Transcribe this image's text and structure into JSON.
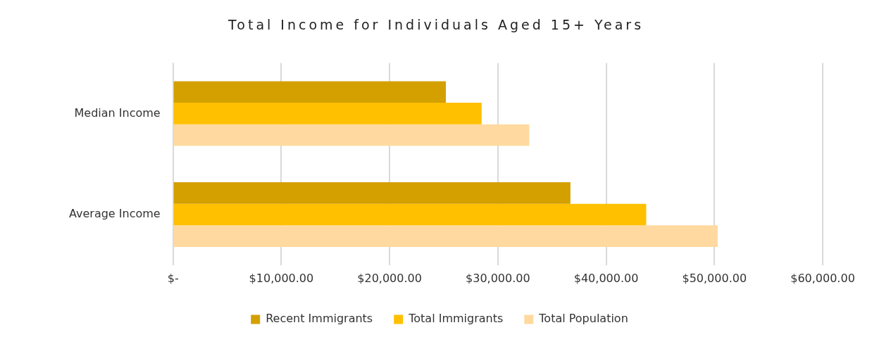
{
  "chart_data": {
    "type": "bar",
    "orientation": "horizontal",
    "title": "Total Income for Individuals Aged 15+ Years",
    "categories": [
      "Median Income",
      "Average Income"
    ],
    "series": [
      {
        "name": "Recent Immigrants",
        "color": "#d4a000",
        "values": [
          25200,
          36700
        ]
      },
      {
        "name": "Total Immigrants",
        "color": "#ffc000",
        "values": [
          28500,
          43700
        ]
      },
      {
        "name": "Total Population",
        "color": "#ffd9a0",
        "values": [
          32900,
          50300
        ]
      }
    ],
    "xlim": [
      0,
      60000
    ],
    "xticks": [
      {
        "value": 0,
        "label": "$-"
      },
      {
        "value": 10000,
        "label": "$10,000.00"
      },
      {
        "value": 20000,
        "label": "$20,000.00"
      },
      {
        "value": 30000,
        "label": "$30,000.00"
      },
      {
        "value": 40000,
        "label": "$40,000.00"
      },
      {
        "value": 50000,
        "label": "$50,000.00"
      },
      {
        "value": 60000,
        "label": "$60,000.00"
      }
    ],
    "grid": "x",
    "legend": "bottom"
  }
}
